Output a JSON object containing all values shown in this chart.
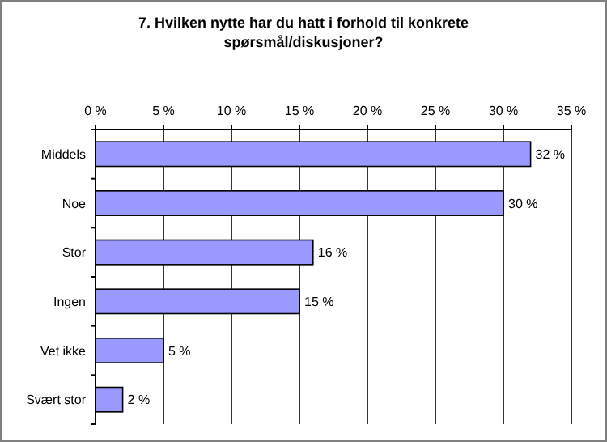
{
  "chart_data": {
    "type": "bar",
    "orientation": "horizontal",
    "title": "7. Hvilken nytte har du hatt i forhold til konkrete spørsmål/diskusjoner?",
    "categories": [
      "Middels",
      "Noe",
      "Stor",
      "Ingen",
      "Vet ikke",
      "Svært stor"
    ],
    "values": [
      32,
      30,
      16,
      15,
      5,
      2
    ],
    "value_labels": [
      "32 %",
      "30 %",
      "16 %",
      "15 %",
      "5 %",
      "2 %"
    ],
    "color": "#9999ff",
    "xlim": [
      0,
      35
    ],
    "xticks": [
      {
        "value": 0,
        "label": "0 %"
      },
      {
        "value": 5,
        "label": "5 %"
      },
      {
        "value": 10,
        "label": "10 %"
      },
      {
        "value": 15,
        "label": "15 %"
      },
      {
        "value": 20,
        "label": "20 %"
      },
      {
        "value": 25,
        "label": "25 %"
      },
      {
        "value": 30,
        "label": "30 %"
      },
      {
        "value": 35,
        "label": "35 %"
      }
    ],
    "grid": "x"
  }
}
